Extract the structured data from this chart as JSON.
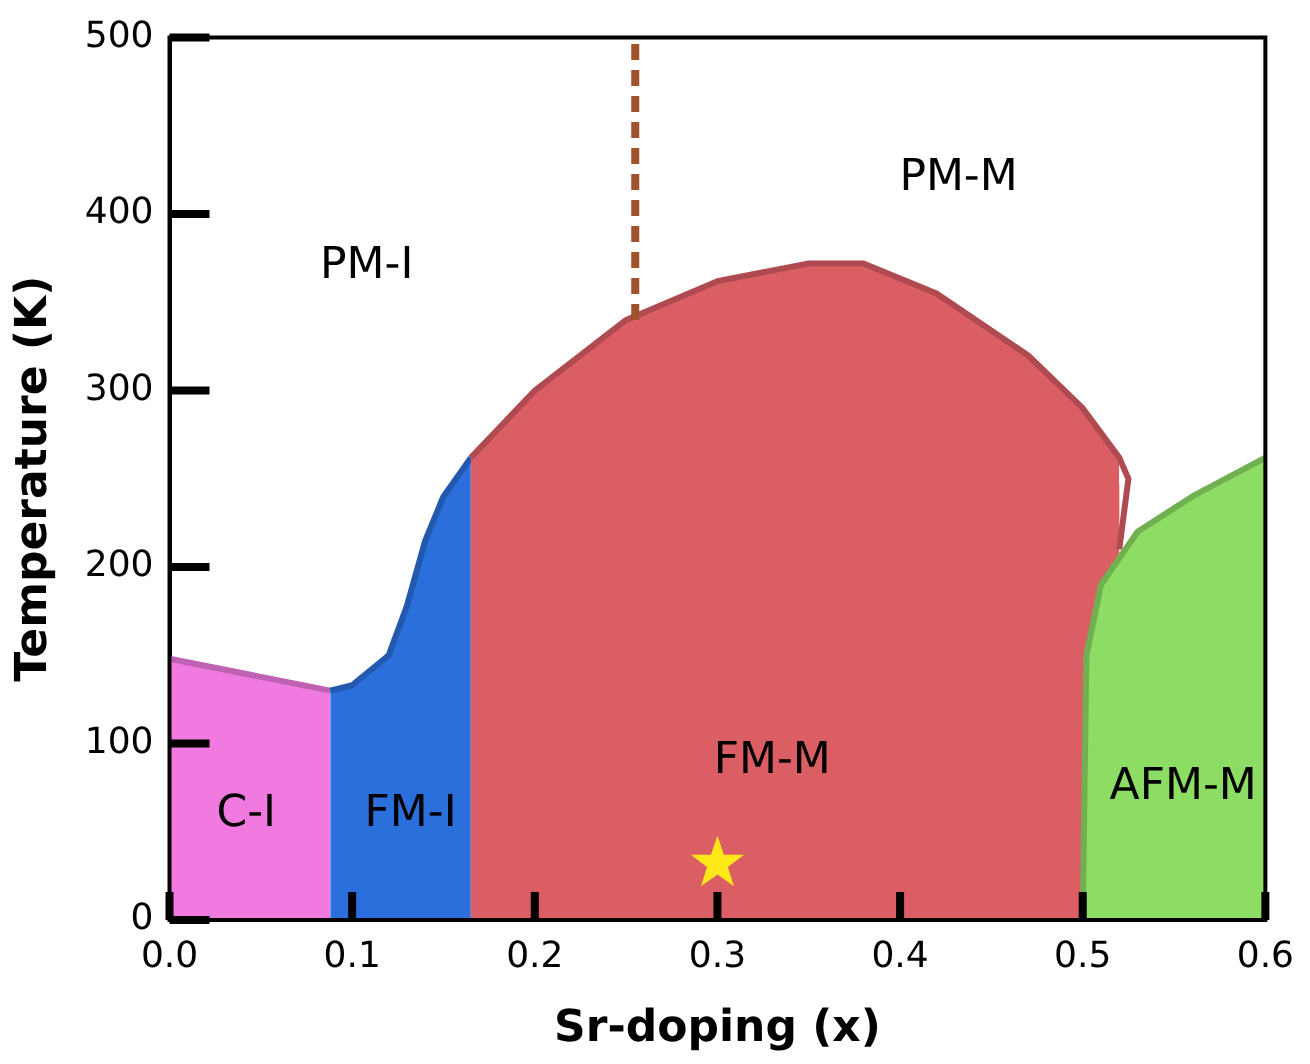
{
  "chart_data": {
    "type": "area",
    "xlabel": "Sr-doping (x)",
    "ylabel": "Temperature (K)",
    "xlim": [
      0,
      0.6
    ],
    "ylim": [
      0,
      500
    ],
    "xticks": [
      {
        "value": 0,
        "label": "0.0"
      },
      0.1,
      0.2,
      0.3,
      0.4,
      0.5,
      0.6
    ],
    "yticks": [
      0,
      100,
      200,
      300,
      400,
      500
    ],
    "grid": false,
    "legend": false,
    "series": [
      {
        "color": "#f07ae0",
        "x": [
          0,
          0.088
        ],
        "values": [
          148,
          130
        ]
      },
      {
        "color": "#2a6fdb",
        "x": [
          0.088,
          0.1,
          0.12,
          0.13,
          0.14,
          0.15,
          0.165
        ],
        "values": [
          130,
          133,
          150,
          178,
          215,
          240,
          262
        ]
      },
      {
        "color": "#db5e64",
        "x": [
          0.165,
          0.2,
          0.25,
          0.3,
          0.35,
          0.38,
          0.42,
          0.47,
          0.5,
          0.52,
          0.525,
          0.52
        ],
        "values": [
          262,
          300,
          340,
          362,
          372,
          372,
          355,
          320,
          290,
          262,
          250,
          210
        ]
      },
      {
        "color": "#8ddc64",
        "x": [
          0.5,
          0.502,
          0.51,
          0.53,
          0.56,
          0.6
        ],
        "values": [
          0,
          150,
          190,
          220,
          240,
          262
        ]
      },
      {
        "type": "line",
        "color": "#a0522d",
        "line_style": "dashed",
        "x": [
          0.255,
          0.255
        ],
        "values": [
          340,
          500
        ]
      },
      {
        "type": "scatter",
        "color": "#ffe81a",
        "marker": "star",
        "x": [
          0.3
        ],
        "values": [
          32
        ]
      }
    ],
    "annotations": [
      "PM-I",
      "PM-M",
      "FM-M",
      "FM-I",
      "C-I",
      "AFM-M"
    ]
  }
}
